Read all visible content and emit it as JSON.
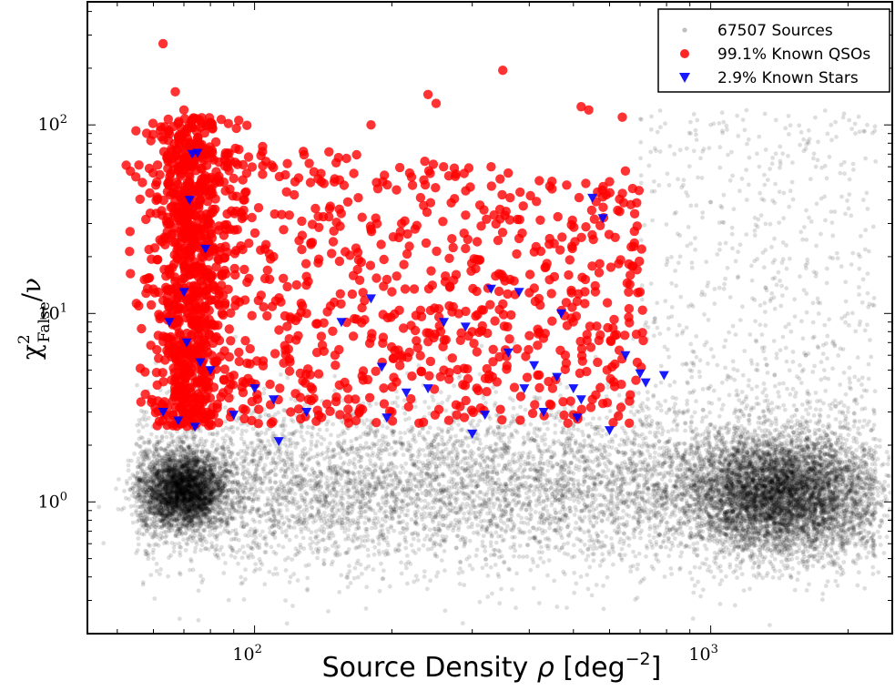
{
  "chart_data": {
    "type": "scatter",
    "xscale": "log",
    "yscale": "log",
    "xlim": [
      43,
      2500
    ],
    "ylim": [
      0.2,
      450
    ],
    "grid": false,
    "legend_position": "top-right",
    "xlabel": {
      "prefix": "Source Density ",
      "symbol": "ρ",
      "unit_open": " [deg",
      "unit_sup": "−2",
      "unit_close": "]"
    },
    "ylabel": {
      "symbol": "χ",
      "sup": "2",
      "sub": "False",
      "rest": "/ν"
    },
    "x_ticks": [
      {
        "value": 100,
        "base": "10",
        "exp": "2"
      },
      {
        "value": 1000,
        "base": "10",
        "exp": "3"
      }
    ],
    "y_ticks": [
      {
        "value": 1,
        "base": "10",
        "exp": "0"
      },
      {
        "value": 10,
        "base": "10",
        "exp": "1"
      },
      {
        "value": 100,
        "base": "10",
        "exp": "2"
      }
    ],
    "series": [
      {
        "name": "67507 Sources",
        "marker": "dot",
        "color": "#000000",
        "alpha": 0.13,
        "count": 67507,
        "clusters": [
          {
            "x_center": 70,
            "y_center": 1.15,
            "x_spread_dex": 0.045,
            "y_spread_dex": 0.1
          },
          {
            "x_center": 1400,
            "y_center": 1.1,
            "x_spread_dex": 0.1,
            "y_spread_dex": 0.15
          },
          {
            "x_range": [
              55,
              2300
            ],
            "y_center": 1.2,
            "y_spread_dex": 0.22
          }
        ],
        "points": [
          [
            60,
            1.2
          ],
          [
            70,
            1.1
          ],
          [
            80,
            1.3
          ],
          [
            100,
            1.2
          ],
          [
            150,
            1.25
          ],
          [
            200,
            1.3
          ],
          [
            300,
            1.3
          ],
          [
            500,
            1.25
          ],
          [
            800,
            1.2
          ],
          [
            1000,
            1.15
          ],
          [
            1400,
            1.1
          ],
          [
            1800,
            1.05
          ],
          [
            2000,
            0.6
          ],
          [
            1500,
            0.4
          ],
          [
            120,
            0.4
          ],
          [
            60,
            0.5
          ],
          [
            900,
            5.0
          ],
          [
            1500,
            8.0
          ],
          [
            2000,
            3.0
          ],
          [
            1200,
            40
          ],
          [
            1700,
            60
          ],
          [
            1000,
            100
          ]
        ]
      },
      {
        "name": "99.1% Known QSOs",
        "marker": "circle",
        "color": "#ff0000",
        "alpha": 0.8,
        "points": [
          [
            63,
            270
          ],
          [
            67,
            150
          ],
          [
            70,
            120
          ],
          [
            72,
            100
          ],
          [
            75,
            85
          ],
          [
            78,
            70
          ],
          [
            68,
            60
          ],
          [
            72,
            50
          ],
          [
            76,
            40
          ],
          [
            80,
            30
          ],
          [
            70,
            20
          ],
          [
            73,
            10
          ],
          [
            77,
            5.0
          ],
          [
            74,
            3.0
          ],
          [
            69,
            2.6
          ],
          [
            95,
            40
          ],
          [
            110,
            20
          ],
          [
            130,
            10
          ],
          [
            150,
            6.0
          ],
          [
            170,
            15
          ],
          [
            210,
            30
          ],
          [
            240,
            145
          ],
          [
            250,
            130
          ],
          [
            350,
            195
          ],
          [
            380,
            25
          ],
          [
            420,
            12
          ],
          [
            480,
            6.0
          ],
          [
            520,
            125
          ],
          [
            540,
            120
          ],
          [
            600,
            50
          ],
          [
            640,
            110
          ],
          [
            650,
            57
          ],
          [
            700,
            13
          ],
          [
            690,
            5.5
          ],
          [
            300,
            8.0
          ],
          [
            200,
            3.0
          ],
          [
            160,
            2.8
          ],
          [
            120,
            3.0
          ],
          [
            450,
            4.0
          ],
          [
            550,
            3.5
          ],
          [
            500,
            2.9
          ],
          [
            260,
            5.0
          ],
          [
            140,
            50
          ],
          [
            180,
            100
          ],
          [
            330,
            60
          ]
        ]
      },
      {
        "name": "2.9% Known Stars",
        "marker": "triangle-down",
        "color": "#0000ff",
        "alpha": 0.9,
        "points": [
          [
            73,
            70
          ],
          [
            75,
            71
          ],
          [
            72,
            40
          ],
          [
            78,
            22
          ],
          [
            70,
            13
          ],
          [
            65,
            9.0
          ],
          [
            71,
            7.0
          ],
          [
            76,
            5.5
          ],
          [
            80,
            5.0
          ],
          [
            63,
            3.0
          ],
          [
            68,
            2.7
          ],
          [
            74,
            2.5
          ],
          [
            90,
            2.9
          ],
          [
            100,
            4.0
          ],
          [
            110,
            3.5
          ],
          [
            113,
            2.1
          ],
          [
            130,
            3.0
          ],
          [
            155,
            9.0
          ],
          [
            180,
            12
          ],
          [
            190,
            5.2
          ],
          [
            195,
            2.8
          ],
          [
            215,
            3.8
          ],
          [
            240,
            4.0
          ],
          [
            260,
            9.0
          ],
          [
            290,
            8.5
          ],
          [
            300,
            2.3
          ],
          [
            320,
            2.9
          ],
          [
            330,
            13.5
          ],
          [
            360,
            6.2
          ],
          [
            380,
            13
          ],
          [
            390,
            4.0
          ],
          [
            410,
            5.3
          ],
          [
            430,
            3.0
          ],
          [
            460,
            4.6
          ],
          [
            470,
            10
          ],
          [
            500,
            4.0
          ],
          [
            510,
            2.8
          ],
          [
            520,
            3.5
          ],
          [
            550,
            41
          ],
          [
            580,
            32
          ],
          [
            600,
            2.4
          ],
          [
            650,
            6.0
          ],
          [
            700,
            4.8
          ],
          [
            720,
            4.3
          ],
          [
            790,
            4.7
          ]
        ]
      }
    ]
  }
}
